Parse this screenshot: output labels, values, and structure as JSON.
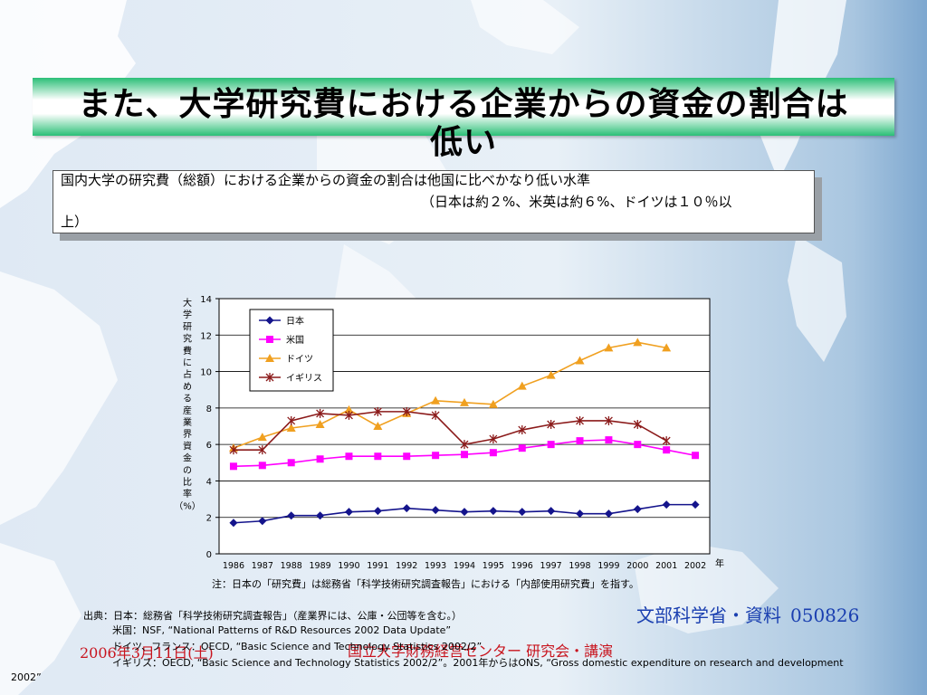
{
  "slide": {
    "title_line1": "また、大学研究費における企業からの資金の割合は",
    "title_line2": "低い",
    "note_line1": "国内大学の研究費（総額）における企業からの資金の割合は他国に比べかなり低い水準",
    "note_line2": "（日本は約２%、米英は約６%、ドイツは１０％以",
    "note_line3": "上）",
    "chart_note": "注：日本の「研究費」は総務省「科学技術研究調査報告」における「内部使用研究費」を指す。",
    "sources": [
      "出典：日本：総務省「科学技術研究調査報告」（産業界には、公庫・公団等を含む。）",
      "米国：NSF, “National Patterns of R&D Resources 2002 Data Update”",
      "ドイツ、フランス：OECD, “Basic Science and Technology Statistics 2002/2”",
      "イギリス：OECD, “Basic Science and Technology Statistics 2002/2”。2001年からはONS, “Gross domestic expenditure on research and development",
      "2002”"
    ],
    "mext_label": "文部科学省・資料",
    "mext_code": "050826",
    "date": "2006年3月11日(土)",
    "center_label": "国立大学財務経営センター 研究会・講演"
  },
  "colors": {
    "japan": "#14148c",
    "usa": "#ff00ff",
    "germany": "#f0a020",
    "uk": "#8b1a1a",
    "banner_green": "#2bbf77",
    "red_text": "#c8141e",
    "blue_text": "#1a3fb0"
  },
  "chart_data": {
    "type": "line",
    "ylabel": "大学研究費に占める産業界資金の比率（%）",
    "xlabel": "年",
    "ylim": [
      0,
      14
    ],
    "yticks": [
      0,
      2,
      4,
      6,
      8,
      10,
      12,
      14
    ],
    "x": [
      "1986",
      "1987",
      "1988",
      "1989",
      "1990",
      "1991",
      "1992",
      "1993",
      "1994",
      "1995",
      "1996",
      "1997",
      "1998",
      "1999",
      "2000",
      "2001",
      "2002"
    ],
    "grid": true,
    "legend_position": "top-left",
    "series": [
      {
        "name": "日本",
        "marker": "diamond",
        "color_key": "japan",
        "values": [
          1.7,
          1.8,
          2.1,
          2.1,
          2.3,
          2.35,
          2.5,
          2.4,
          2.3,
          2.35,
          2.3,
          2.35,
          2.2,
          2.2,
          2.45,
          2.7,
          2.7
        ]
      },
      {
        "name": "米国",
        "marker": "square",
        "color_key": "usa",
        "values": [
          4.8,
          4.85,
          5.0,
          5.2,
          5.35,
          5.35,
          5.35,
          5.4,
          5.45,
          5.55,
          5.8,
          6.0,
          6.2,
          6.25,
          6.0,
          5.7,
          5.4
        ]
      },
      {
        "name": "ドイツ",
        "marker": "triangle",
        "color_key": "germany",
        "values": [
          5.8,
          6.4,
          6.9,
          7.1,
          7.9,
          7.0,
          7.7,
          8.4,
          8.3,
          8.2,
          9.2,
          9.8,
          10.6,
          11.3,
          11.6,
          11.3,
          null
        ]
      },
      {
        "name": "イギリス",
        "marker": "star",
        "color_key": "uk",
        "values": [
          5.7,
          5.7,
          7.3,
          7.7,
          7.6,
          7.8,
          7.8,
          7.6,
          6.0,
          6.3,
          6.8,
          7.1,
          7.3,
          7.3,
          7.1,
          6.2,
          null
        ]
      }
    ]
  }
}
